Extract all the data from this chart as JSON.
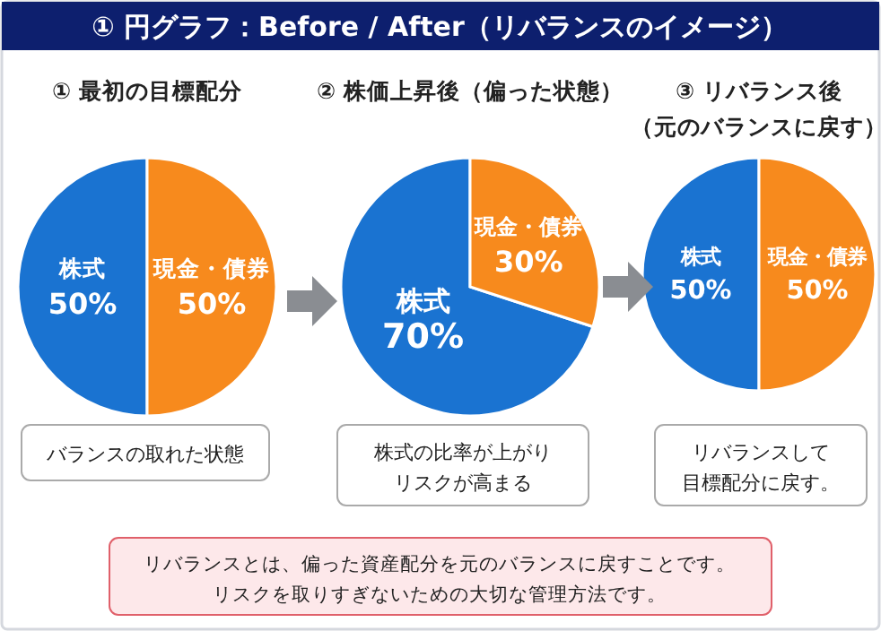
{
  "chart_data": [
    {
      "type": "pie",
      "title": "① 円グラフ：Before / After（リバランスのイメージ）",
      "subtitle": "① 最初の目標配分",
      "categories": [
        "株式",
        "現金・債券"
      ],
      "values": [
        50,
        50
      ],
      "colors": [
        "#1a73d1",
        "#f78a1d"
      ],
      "value_labels": [
        "50%",
        "50%"
      ],
      "annotations": [
        "バランスの取れた状態"
      ]
    },
    {
      "type": "pie",
      "subtitle": "② 株価上昇後（偏った状態）",
      "categories": [
        "株式",
        "現金・債券"
      ],
      "values": [
        70,
        30
      ],
      "colors": [
        "#1a73d1",
        "#f78a1d"
      ],
      "value_labels": [
        "70%",
        "30%"
      ],
      "annotations": [
        "株式の比率が上がり",
        "リスクが高まる"
      ]
    },
    {
      "type": "pie",
      "subtitle": "③ リバランス後",
      "categories": [
        "株式",
        "現金・債券"
      ],
      "values": [
        50,
        50
      ],
      "colors": [
        "#1a73d1",
        "#f78a1d"
      ],
      "value_labels": [
        "50%",
        "50%"
      ],
      "annotations": [
        "（元のバランスに戻す）",
        "リバランスして",
        "目標配分に戻す。",
        "リバランスとは、偏った資産配分を元のバランスに戻すことです。",
        "リスクを取りすぎないための大切な管理方法です。"
      ]
    }
  ]
}
